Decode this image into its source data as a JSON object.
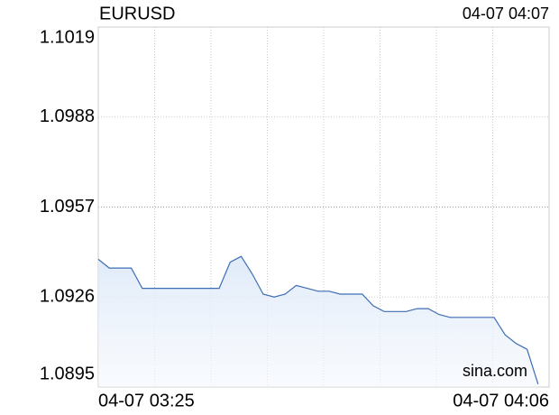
{
  "chart_data": {
    "type": "line",
    "title": "EURUSD",
    "timestamp": "04-07 04:07",
    "watermark": "sina.com",
    "x": [
      0,
      1,
      2,
      3,
      4,
      5,
      6,
      7,
      8,
      9,
      10,
      11,
      12,
      13,
      14,
      15,
      16,
      17,
      18,
      19,
      20,
      21,
      22,
      23,
      24,
      25,
      26,
      27,
      28,
      29,
      30,
      31,
      32,
      33,
      34,
      35,
      36,
      37,
      38,
      39,
      40
    ],
    "series": [
      {
        "color": "#3d6db5",
        "values": [
          1.0939,
          1.0936,
          1.0936,
          1.0936,
          1.0929,
          1.0929,
          1.0929,
          1.0929,
          1.0929,
          1.0929,
          1.0929,
          1.0929,
          1.0938,
          1.094,
          1.0934,
          1.0927,
          1.0926,
          1.0927,
          1.093,
          1.0929,
          1.0928,
          1.0928,
          1.0927,
          1.0927,
          1.0927,
          1.0923,
          1.0921,
          1.0921,
          1.0921,
          1.0922,
          1.0922,
          1.092,
          1.0919,
          1.0919,
          1.0919,
          1.0919,
          1.0919,
          1.0913,
          1.091,
          1.0908,
          1.0896
        ]
      }
    ],
    "xlim": [
      0,
      41
    ],
    "xticks": [
      {
        "value": 0,
        "label": "04-07 03:25"
      },
      {
        "value": 41,
        "label": "04-07 04:06"
      }
    ],
    "ylim": [
      1.0895,
      1.1019
    ],
    "yticks": [
      1.1019,
      1.0988,
      1.0957,
      1.0926,
      1.0895
    ],
    "ytick_colors": [
      "#119911",
      "#119911",
      "#000000",
      "#dd1111",
      "#dd1111"
    ],
    "grid": true
  }
}
